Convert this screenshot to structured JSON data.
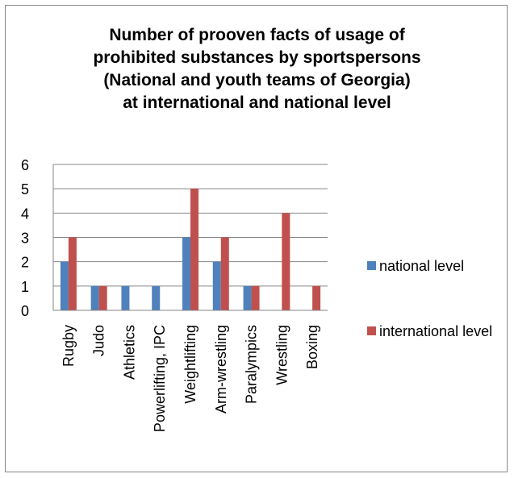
{
  "chart_data": {
    "type": "bar",
    "title_lines": [
      "Number of prooven facts of usage of",
      "prohibited substances by sportspersons",
      "(National and youth teams of Georgia)",
      "at international and national level"
    ],
    "categories": [
      "Rugby",
      "Judo",
      "Athletics",
      "Powerlifting, IPC",
      "Weightlifting",
      "Arm-wrestling",
      "Paralympics",
      "Wrestling",
      "Boxing"
    ],
    "series": [
      {
        "name": "national level",
        "color": "#4F81BD",
        "values": [
          2,
          1,
          1,
          1,
          3,
          2,
          1,
          0,
          0
        ]
      },
      {
        "name": "international level",
        "color": "#C0504D",
        "values": [
          3,
          1,
          0,
          0,
          5,
          3,
          1,
          4,
          1
        ]
      }
    ],
    "ylim": [
      0,
      6
    ],
    "yticks": [
      "0",
      "1",
      "2",
      "3",
      "4",
      "5",
      "6"
    ],
    "grid": true,
    "legend_position": "right"
  }
}
